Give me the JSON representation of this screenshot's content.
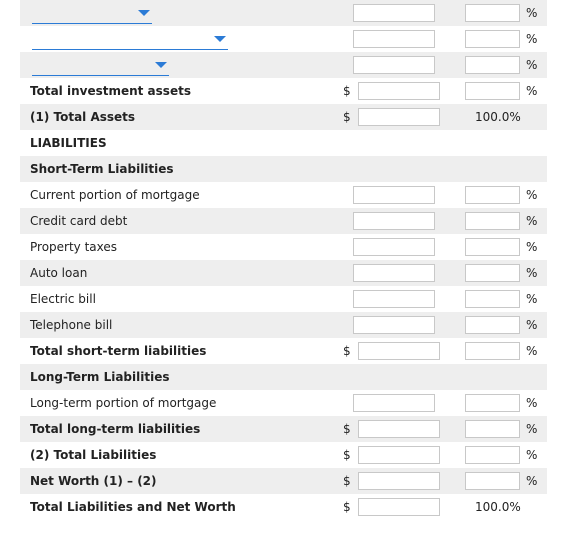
{
  "investments": {
    "dropdown_rows": [
      {
        "selected": ""
      },
      {
        "selected": ""
      },
      {
        "selected": ""
      }
    ],
    "total_label": "Total investment assets"
  },
  "total_assets": {
    "label": "(1) Total Assets",
    "percent_text": "100.0%"
  },
  "liabilities": {
    "section_label": "LIABILITIES",
    "short_term": {
      "header": "Short-Term Liabilities",
      "items": [
        {
          "label": "Current portion of mortgage"
        },
        {
          "label": "Credit card debt"
        },
        {
          "label": "Property taxes"
        },
        {
          "label": "Auto loan"
        },
        {
          "label": "Electric bill"
        },
        {
          "label": "Telephone bill"
        }
      ],
      "total_label": "Total short-term liabilities"
    },
    "long_term": {
      "header": "Long-Term Liabilities",
      "items": [
        {
          "label": "Long-term portion of mortgage"
        }
      ],
      "total_label": "Total long-term liabilities"
    },
    "total_label": "(2) Total Liabilities"
  },
  "net_worth": {
    "label": "Net Worth (1) – (2)"
  },
  "grand_total": {
    "label": "Total Liabilities and Net Worth",
    "percent_text": "100.0%"
  },
  "symbols": {
    "dollar": "$",
    "percent": "%"
  },
  "colors": {
    "shade": "#eeeeee",
    "accent": "#2b7bd6",
    "input_border": "#c8c8c8"
  },
  "icons": {
    "dropdown": "chevron-down-icon"
  }
}
